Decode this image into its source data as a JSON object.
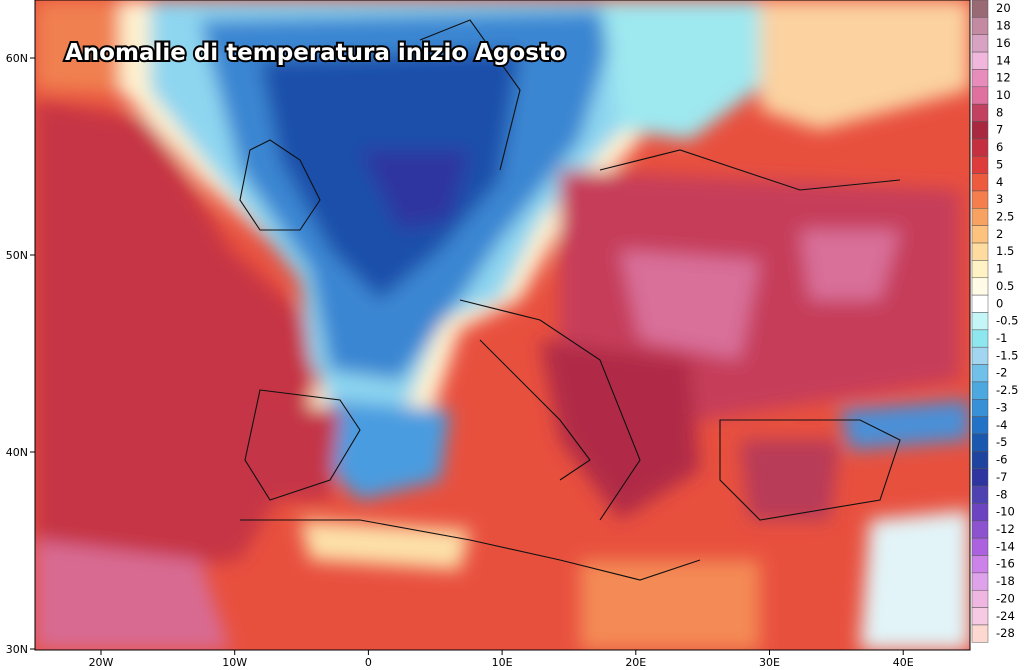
{
  "title": "Anomalie di temperatura inizio Agosto",
  "lat_ticks": [
    "60N",
    "50N",
    "40N",
    "30N"
  ],
  "lon_ticks": [
    "20W",
    "10W",
    "0",
    "10E",
    "20E",
    "30E",
    "40E"
  ],
  "colorbar": {
    "levels": [
      20,
      18,
      16,
      14,
      12,
      10,
      8,
      7,
      6,
      5,
      4,
      3,
      2.5,
      2,
      1.5,
      1,
      0.5,
      0,
      -0.5,
      -1,
      -1.5,
      -2,
      -2.5,
      -3,
      -4,
      -5,
      -6,
      -7,
      -8,
      -10,
      -12,
      -14,
      -16,
      -18,
      -20,
      -24,
      -28
    ],
    "colors": [
      "#9a6a74",
      "#c48aa2",
      "#d8a2c2",
      "#f0b6dc",
      "#e88cbc",
      "#e0709e",
      "#c24060",
      "#a82840",
      "#c43040",
      "#de3c3c",
      "#ee5a3e",
      "#f47e4e",
      "#f8a262",
      "#fcc27e",
      "#fedca0",
      "#fff2c4",
      "#fffbe6",
      "#ffffff",
      "#c4f6f8",
      "#8ee6ee",
      "#a2d6f0",
      "#70c0ea",
      "#4ea8e0",
      "#3890d6",
      "#2272c8",
      "#1a58b0",
      "#1e44a0",
      "#2e34a0",
      "#4e42b2",
      "#6c44c2",
      "#8c52d0",
      "#ac62de",
      "#cc82e8",
      "#dea2ea",
      "#f0b6e2",
      "#f6cae2",
      "#fcd8d0"
    ]
  }
}
